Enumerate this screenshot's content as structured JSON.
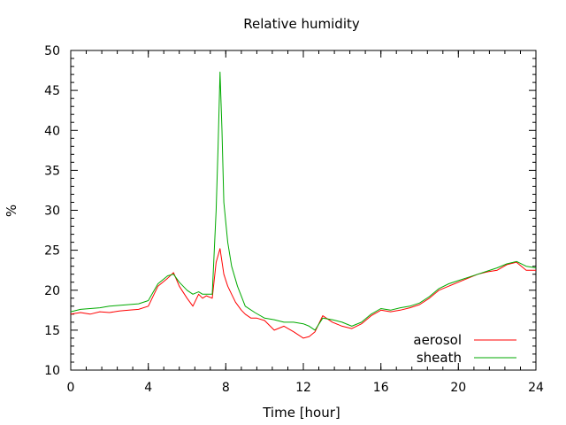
{
  "chart_data": {
    "type": "line",
    "title": "Relative humidity",
    "xlabel": "Time [hour]",
    "ylabel": "%",
    "xlim": [
      0,
      24
    ],
    "ylim": [
      10,
      50
    ],
    "x_ticks": [
      0,
      4,
      8,
      12,
      16,
      20,
      24
    ],
    "y_ticks": [
      10,
      15,
      20,
      25,
      30,
      35,
      40,
      45,
      50
    ],
    "x_minor_step": 0.8,
    "y_minor_step": 1,
    "grid": false,
    "legend_position": "bottom-right",
    "series": [
      {
        "name": "aerosol",
        "color": "#ff0000",
        "x": [
          0,
          0.5,
          1,
          1.5,
          2,
          2.5,
          3,
          3.5,
          4,
          4.5,
          5,
          5.3,
          5.6,
          6,
          6.3,
          6.6,
          6.8,
          7,
          7.3,
          7.5,
          7.7,
          7.9,
          8.1,
          8.3,
          8.5,
          8.8,
          9,
          9.3,
          9.6,
          10,
          10.5,
          11,
          11.5,
          12,
          12.3,
          12.6,
          13,
          13.5,
          14,
          14.5,
          15,
          15.5,
          16,
          16.5,
          17,
          17.5,
          18,
          18.5,
          19,
          19.5,
          20,
          20.5,
          21,
          21.5,
          22,
          22.5,
          23,
          23.5,
          24
        ],
        "y": [
          17.0,
          17.2,
          17.0,
          17.3,
          17.2,
          17.4,
          17.5,
          17.6,
          18.0,
          20.5,
          21.5,
          22.2,
          20.5,
          19.0,
          18.0,
          19.5,
          19.0,
          19.3,
          19.0,
          23.5,
          25.2,
          22.0,
          20.5,
          19.5,
          18.5,
          17.5,
          17.0,
          16.5,
          16.5,
          16.2,
          15.0,
          15.5,
          14.8,
          14.0,
          14.2,
          14.8,
          16.8,
          16.0,
          15.5,
          15.2,
          15.8,
          16.8,
          17.5,
          17.3,
          17.5,
          17.8,
          18.2,
          19.0,
          20.0,
          20.5,
          21.0,
          21.5,
          22.0,
          22.3,
          22.5,
          23.2,
          23.5,
          22.5,
          22.5
        ]
      },
      {
        "name": "sheath",
        "color": "#00aa00",
        "x": [
          0,
          0.5,
          1,
          1.5,
          2,
          2.5,
          3,
          3.5,
          4,
          4.5,
          5,
          5.3,
          5.6,
          6,
          6.3,
          6.6,
          6.8,
          7,
          7.3,
          7.5,
          7.6,
          7.7,
          7.8,
          7.9,
          8.1,
          8.3,
          8.6,
          9,
          9.5,
          10,
          10.5,
          11,
          11.5,
          12,
          12.3,
          12.6,
          13,
          13.5,
          14,
          14.5,
          15,
          15.5,
          16,
          16.5,
          17,
          17.5,
          18,
          18.5,
          19,
          19.5,
          20,
          20.5,
          21,
          21.5,
          22,
          22.5,
          23,
          23.5,
          24
        ],
        "y": [
          17.3,
          17.6,
          17.7,
          17.8,
          18.0,
          18.1,
          18.2,
          18.3,
          18.7,
          20.8,
          21.8,
          22.0,
          21.0,
          20.0,
          19.5,
          19.8,
          19.5,
          19.5,
          19.5,
          30.0,
          38.0,
          47.3,
          40.0,
          31.0,
          26.0,
          23.0,
          20.5,
          18.0,
          17.2,
          16.5,
          16.3,
          16.0,
          16.0,
          15.8,
          15.5,
          15.0,
          16.5,
          16.3,
          16.0,
          15.5,
          16.0,
          17.0,
          17.7,
          17.5,
          17.8,
          18.0,
          18.4,
          19.2,
          20.2,
          20.8,
          21.2,
          21.6,
          22.0,
          22.4,
          22.8,
          23.3,
          23.6,
          23.0,
          22.8
        ]
      }
    ]
  }
}
